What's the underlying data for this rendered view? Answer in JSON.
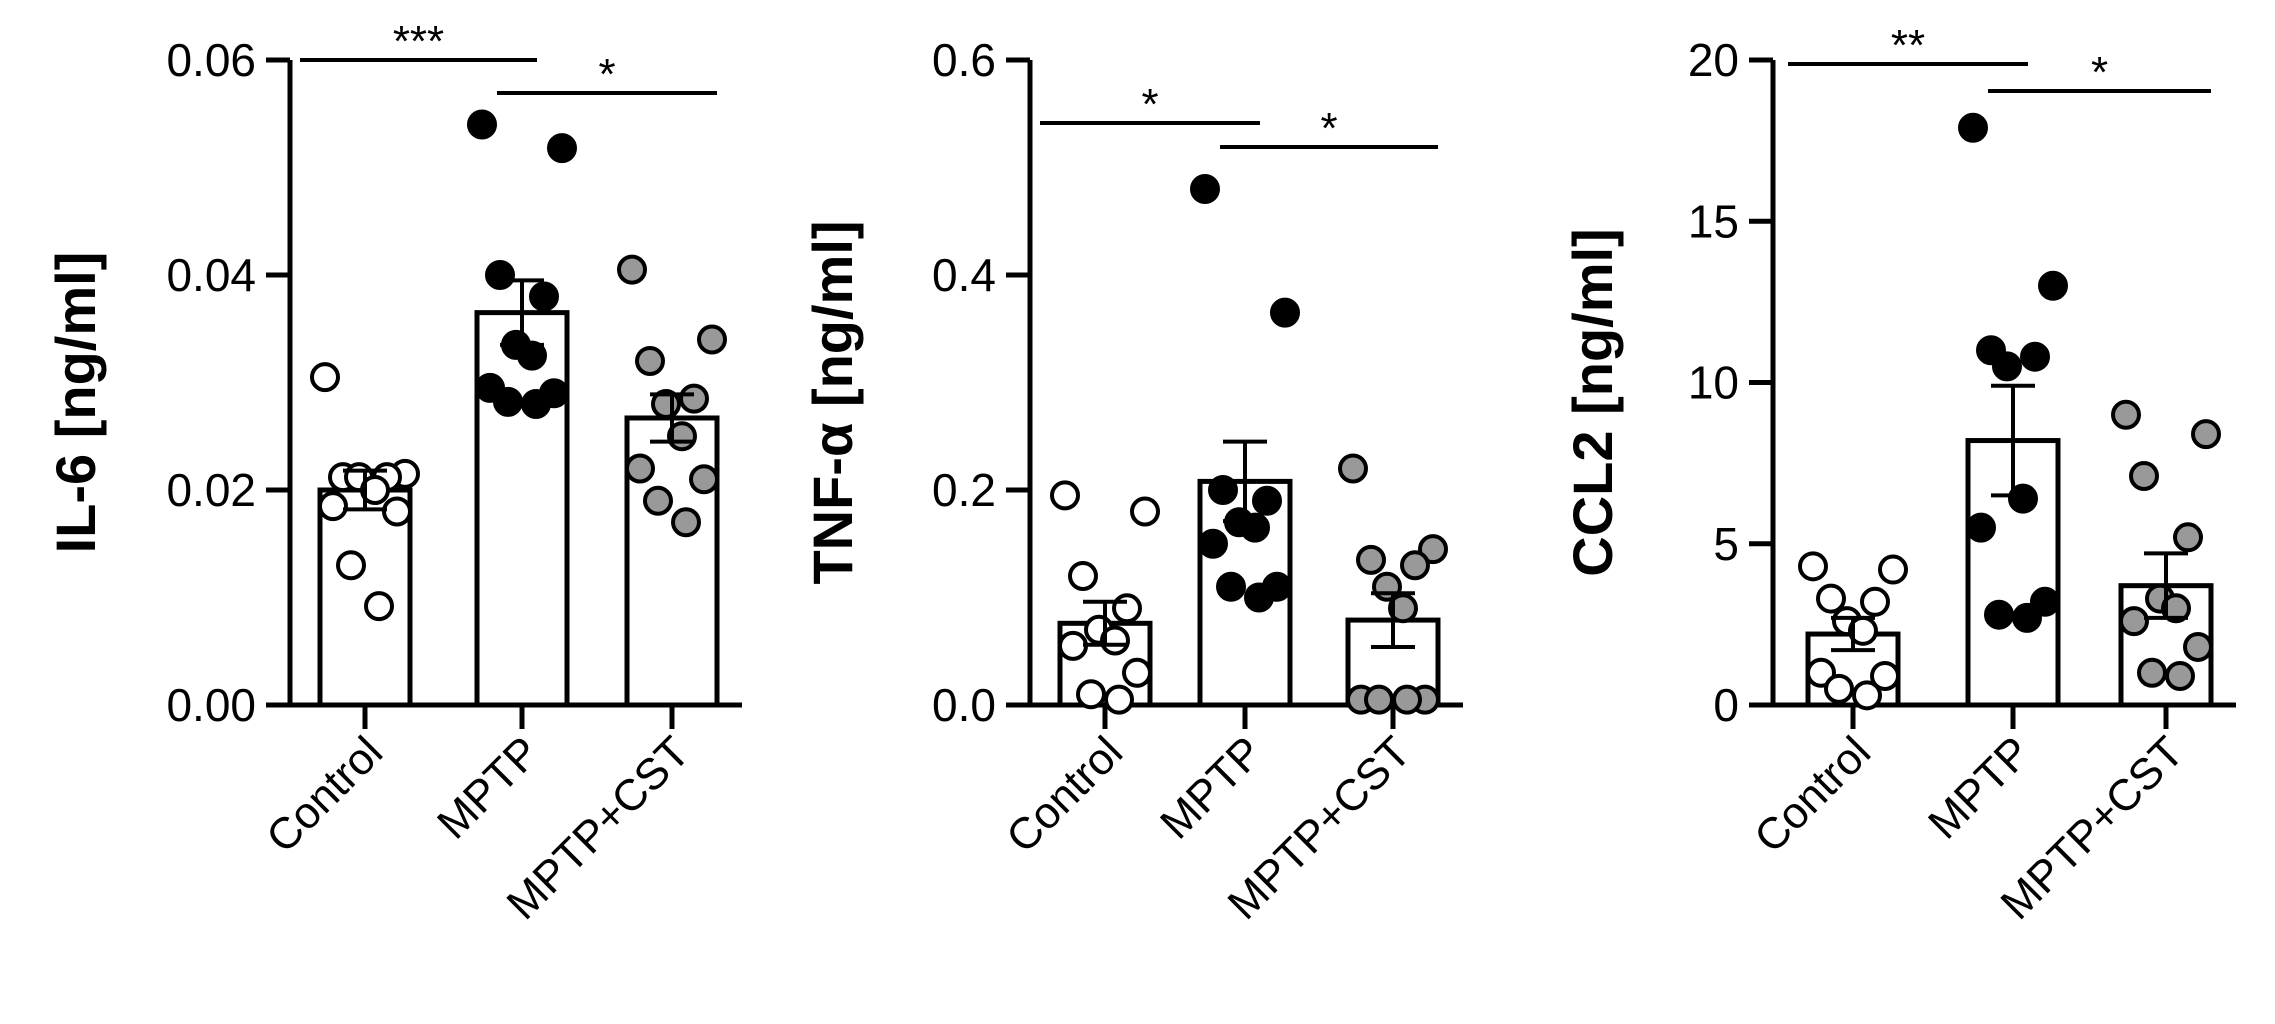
{
  "chart_data": [
    {
      "type": "bar",
      "ylabel": "IL-6 [ng/ml]",
      "categories": [
        "Control",
        "MPTP",
        "MPTP+CST"
      ],
      "ylim": [
        0,
        0.06
      ],
      "yticks": [
        "0.00",
        "0.02",
        "0.04",
        "0.06"
      ],
      "tick_values": [
        0,
        0.02,
        0.04,
        0.06
      ],
      "values": [
        0.02,
        0.0365,
        0.0267
      ],
      "sem": [
        0.0018,
        0.003,
        0.0022
      ],
      "points": [
        [
          0.0305,
          0.0215,
          0.0212,
          0.0212,
          0.0212,
          0.02,
          0.0185,
          0.018,
          0.013,
          0.0092
        ],
        [
          0.054,
          0.0518,
          0.04,
          0.038,
          0.0335,
          0.0325,
          0.0295,
          0.029,
          0.0282,
          0.028
        ],
        [
          0.0405,
          0.034,
          0.032,
          0.0285,
          0.028,
          0.025,
          0.022,
          0.021,
          0.019,
          0.017
        ]
      ],
      "significance": [
        {
          "from": 0,
          "to": 1,
          "label": "***"
        },
        {
          "from": 1,
          "to": 2,
          "label": "*"
        }
      ]
    },
    {
      "type": "bar",
      "ylabel": "TNF-α [ng/ml]",
      "categories": [
        "Control",
        "MPTP",
        "MPTP+CST"
      ],
      "ylim": [
        0,
        0.6
      ],
      "yticks": [
        "0.0",
        "0.2",
        "0.4",
        "0.6"
      ],
      "tick_values": [
        0,
        0.2,
        0.4,
        0.6
      ],
      "values": [
        0.076,
        0.208,
        0.079
      ],
      "sem": [
        0.02,
        0.037,
        0.025
      ],
      "points": [
        [
          0.195,
          0.18,
          0.12,
          0.09,
          0.07,
          0.06,
          0.055,
          0.03,
          0.01,
          0.005
        ],
        [
          0.48,
          0.365,
          0.2,
          0.19,
          0.17,
          0.165,
          0.15,
          0.11,
          0.11,
          0.1
        ],
        [
          0.22,
          0.145,
          0.135,
          0.13,
          0.11,
          0.09,
          0.005,
          0.005,
          0.005,
          0.005
        ]
      ],
      "significance": [
        {
          "from": 0,
          "to": 1,
          "label": "*"
        },
        {
          "from": 1,
          "to": 2,
          "label": "*"
        }
      ]
    },
    {
      "type": "bar",
      "ylabel": "CCL2 [ng/ml]",
      "categories": [
        "Control",
        "MPTP",
        "MPTP+CST"
      ],
      "ylim": [
        0,
        20
      ],
      "yticks": [
        "0",
        "5",
        "10",
        "15",
        "20"
      ],
      "tick_values": [
        0,
        5,
        10,
        15,
        20
      ],
      "values": [
        2.2,
        8.2,
        3.7
      ],
      "sem": [
        0.5,
        1.7,
        1.0
      ],
      "points": [
        [
          4.3,
          4.2,
          3.3,
          3.2,
          2.6,
          2.3,
          1.0,
          0.9,
          0.5,
          0.3
        ],
        [
          17.9,
          13.0,
          11.0,
          10.8,
          10.5,
          6.4,
          5.5,
          3.2,
          2.8,
          2.7
        ],
        [
          9.0,
          8.4,
          7.1,
          5.2,
          3.3,
          3.0,
          2.6,
          1.8,
          1.0,
          0.9
        ]
      ],
      "significance": [
        {
          "from": 0,
          "to": 1,
          "label": "**"
        },
        {
          "from": 1,
          "to": 2,
          "label": "*"
        }
      ]
    }
  ],
  "colors": {
    "control_fill": "#ffffff",
    "mptp_fill": "#000000",
    "mptp_cst_fill": "#999999",
    "stroke": "#000000"
  }
}
